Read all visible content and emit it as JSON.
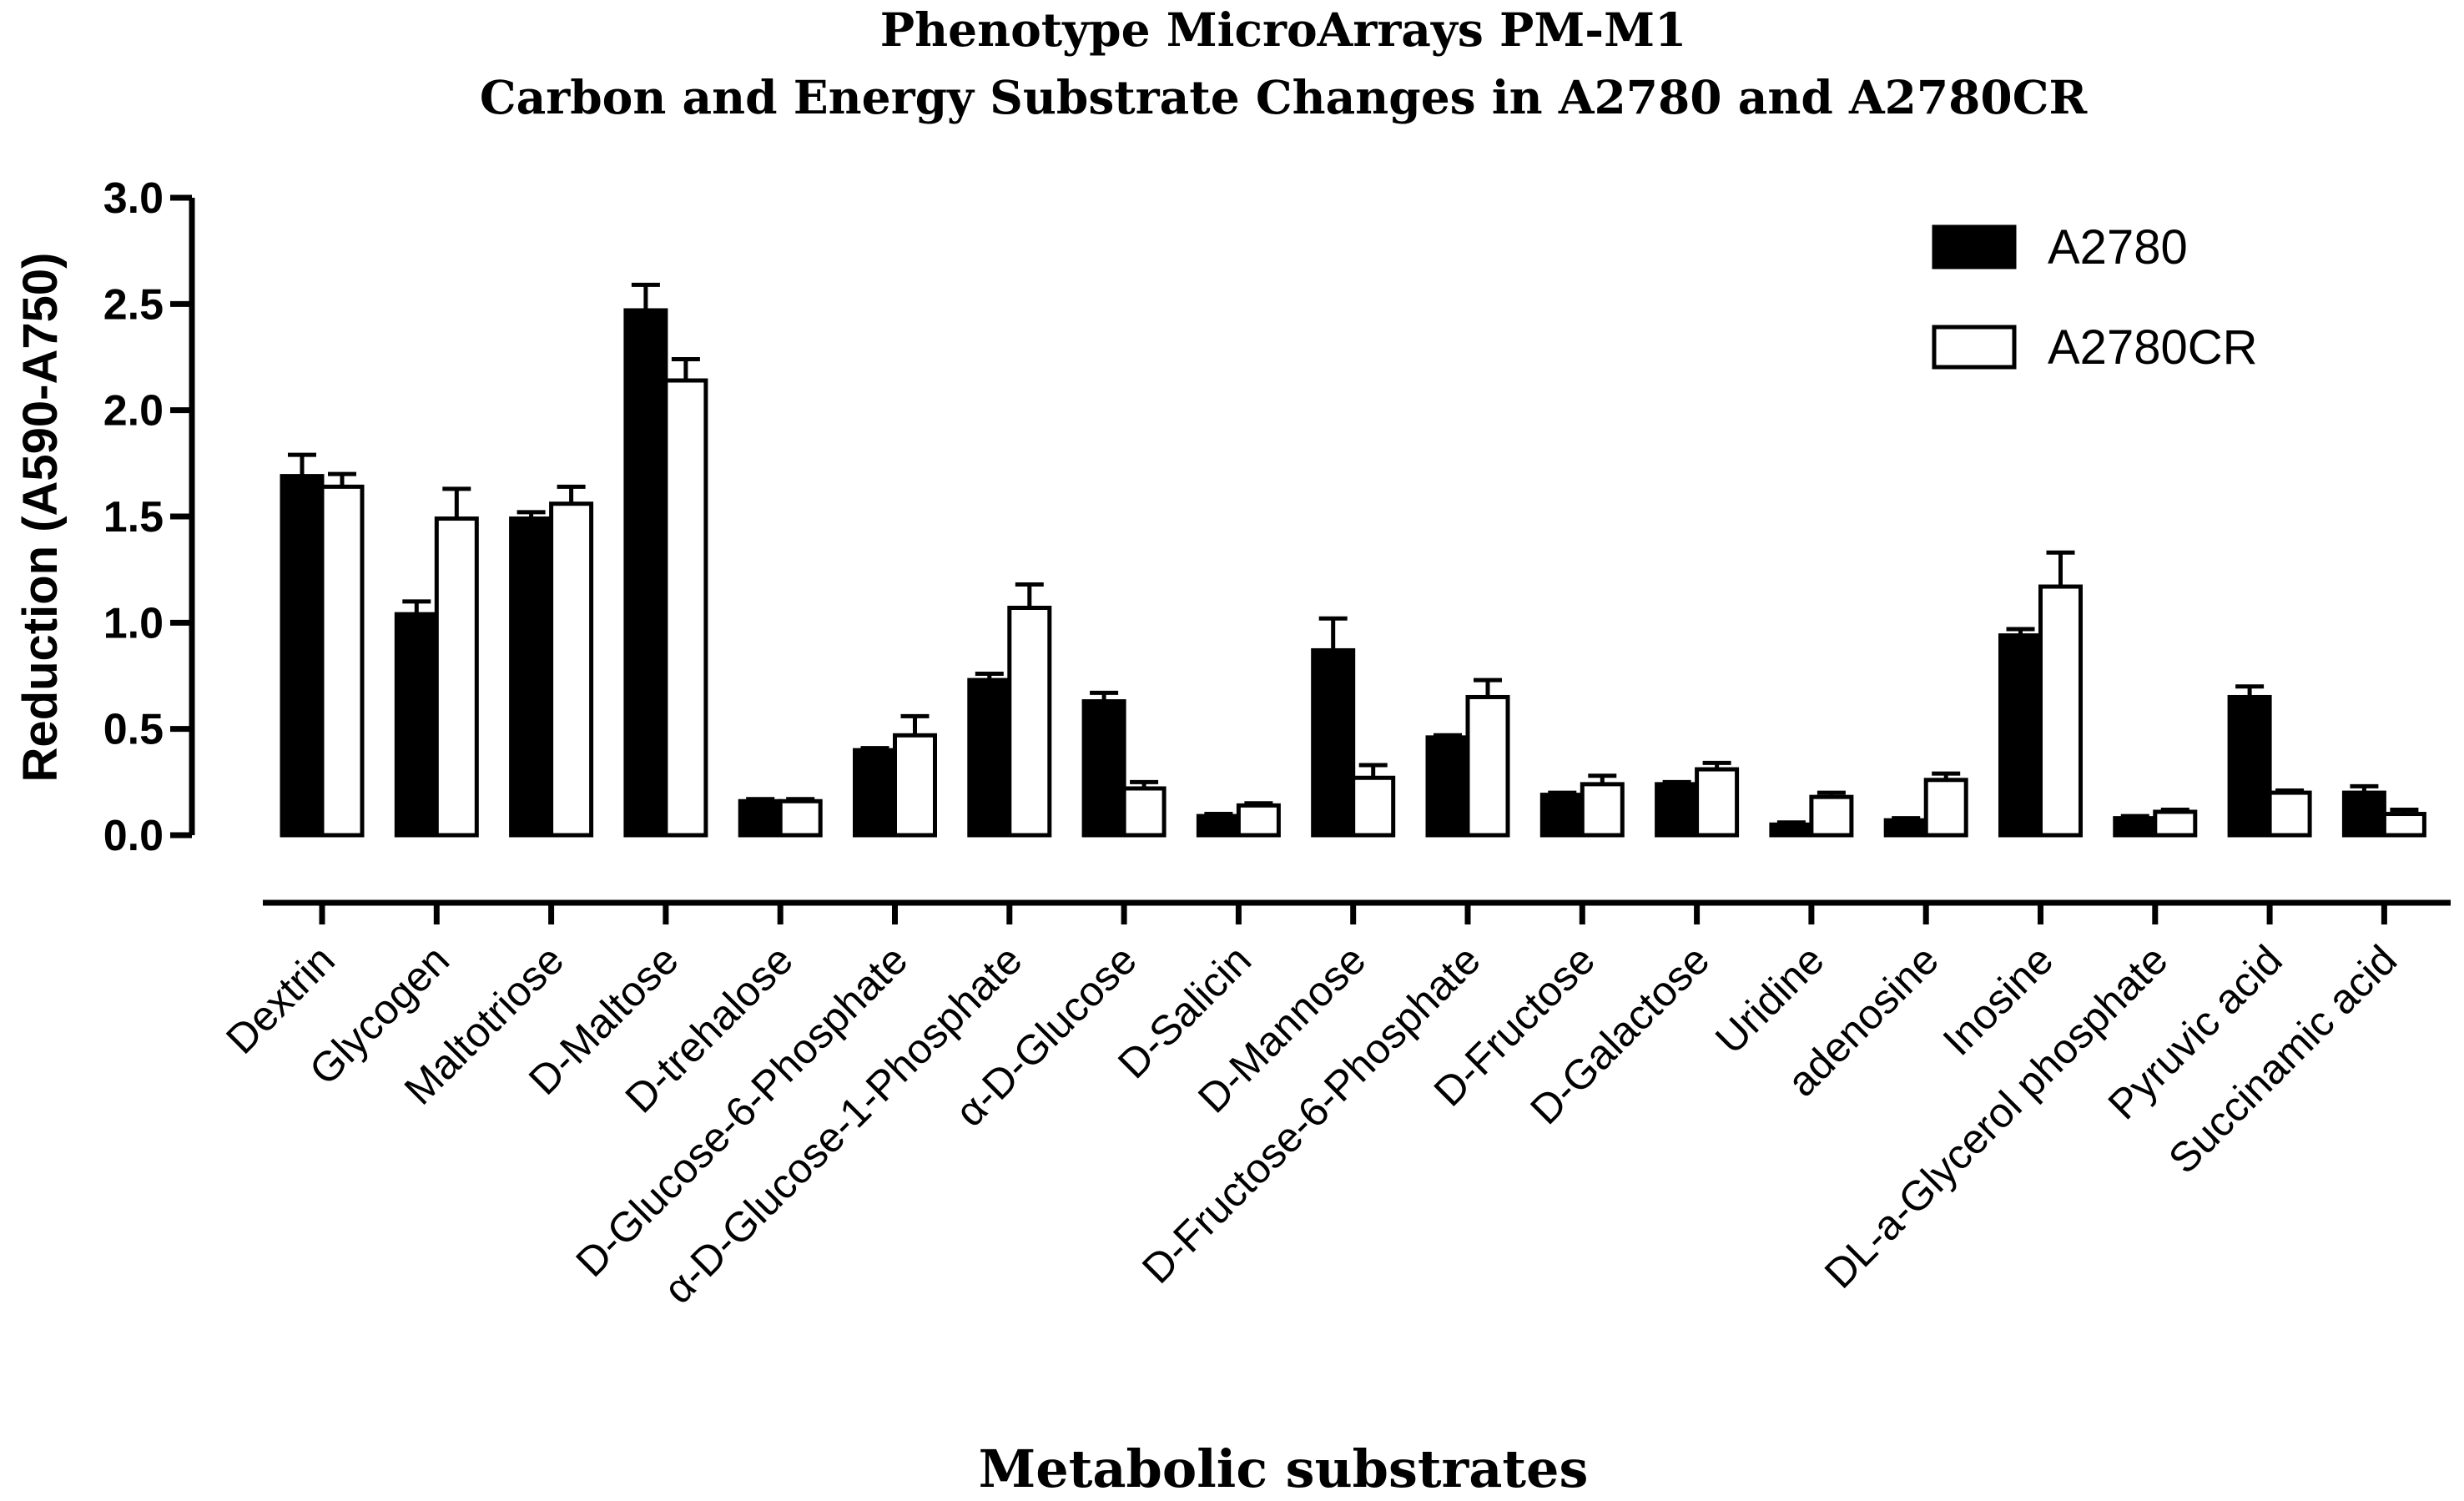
{
  "chart_data": {
    "type": "bar",
    "title": "Phenotype MicroArrays PM-M1",
    "subtitle": "Carbon and Energy Substrate Changes in A2780 and A2780CR",
    "xlabel": "Metabolic substrates",
    "ylabel": "Reduction (A590-A750)",
    "ylim": [
      0,
      3.0
    ],
    "yticks": [
      "0.0",
      "0.5",
      "1.0",
      "1.5",
      "2.0",
      "2.5",
      "3.0"
    ],
    "grid": false,
    "legend_position": "top-right",
    "categories": [
      "Dextrin",
      "Glycogen",
      "Maltotriose",
      "D-Maltose",
      "D-trehalose",
      "D-Glucose-6-Phosphate",
      "α-D-Glucose-1-Phosphate",
      "α-D-Glucose",
      "D-Salicin",
      "D-Mannose",
      "D-Fructose-6-Phosphate",
      "D-Fructose",
      "D-Galactose",
      "Uridine",
      "adenosine",
      "Inosine",
      "DL-a-Glycerol phosphate",
      "Pyruvic acid",
      "Succinamic acid"
    ],
    "series": [
      {
        "name": "A2780",
        "color": "#000000",
        "values": [
          1.69,
          1.04,
          1.49,
          2.47,
          0.16,
          0.4,
          0.73,
          0.63,
          0.09,
          0.87,
          0.46,
          0.19,
          0.24,
          0.05,
          0.07,
          0.94,
          0.08,
          0.65,
          0.2
        ],
        "errors": [
          0.1,
          0.06,
          0.03,
          0.12,
          0.01,
          0.01,
          0.03,
          0.04,
          0.01,
          0.15,
          0.01,
          0.01,
          0.01,
          0.01,
          0.01,
          0.03,
          0.01,
          0.05,
          0.03
        ]
      },
      {
        "name": "A2780CR",
        "color": "#ffffff",
        "values": [
          1.64,
          1.49,
          1.56,
          2.14,
          0.16,
          0.47,
          1.07,
          0.22,
          0.14,
          0.27,
          0.65,
          0.24,
          0.31,
          0.18,
          0.26,
          1.17,
          0.11,
          0.2,
          0.1
        ],
        "errors": [
          0.06,
          0.14,
          0.08,
          0.1,
          0.01,
          0.09,
          0.11,
          0.03,
          0.01,
          0.06,
          0.08,
          0.04,
          0.03,
          0.02,
          0.03,
          0.16,
          0.01,
          0.01,
          0.02
        ]
      }
    ]
  }
}
